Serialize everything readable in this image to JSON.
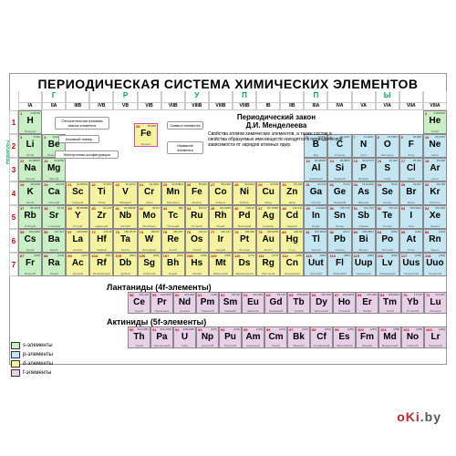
{
  "title": "ПЕРИОДИЧЕСКАЯ СИСТЕМА ХИМИЧЕСКИХ ЭЛЕМЕНТОВ",
  "groups_word": "Г   Р   У   П   П   Ы",
  "periods_word": "ПЕРИОДЫ",
  "col_labels": [
    "IA",
    "IIA",
    "IIIB",
    "IVB",
    "VB",
    "VIB",
    "VIIB",
    "VIIIB",
    "VIIIB",
    "VIIIB",
    "IB",
    "IIB",
    "IIIA",
    "IVA",
    "VA",
    "VIA",
    "VIIA",
    "VIIIA"
  ],
  "periods": [
    "1",
    "2",
    "3",
    "4",
    "5",
    "6",
    "7"
  ],
  "law": {
    "title": "Периодический закон",
    "author": "Д.И. Менделеева",
    "text": "Свойства атомов химических элементов, а также состав и свойства образуемых ими веществ находятся в периодической зависимости от зарядов атомных ядер."
  },
  "insets": {
    "b1": "Относительная атомная масса элемента",
    "b2": "Атомный номер",
    "b3": "Символ элемента",
    "b4": "Электронная конфигурация",
    "b5": "Название элемента"
  },
  "sample": {
    "num": "26",
    "mass": "55,845",
    "sym": "Fe",
    "name": "Железо"
  },
  "colors": {
    "s": "#c8f0c4",
    "p": "#c4e6f2",
    "d": "#f5f3a0",
    "f": "#e8d0e8",
    "border": "#888",
    "highlight": "#d633aa"
  },
  "legend": [
    {
      "color": "#c8f0c4",
      "label": "s-элементы"
    },
    {
      "color": "#c4e6f2",
      "label": "p-элементы"
    },
    {
      "color": "#f5f3a0",
      "label": "d-элементы"
    },
    {
      "color": "#e8d0e8",
      "label": "f-элементы"
    }
  ],
  "lanthanide_title": "Лантаниды (4f-элементы)",
  "actinide_title": "Актиниды (5f-элементы)",
  "watermark": {
    "a": "oKi",
    "b": ".by"
  },
  "elements": [
    {
      "p": 1,
      "g": 1,
      "n": 1,
      "s": "H",
      "m": "1,00794",
      "nm": "Водород",
      "c": "s"
    },
    {
      "p": 1,
      "g": 18,
      "n": 2,
      "s": "He",
      "m": "4,002602",
      "nm": "Гелий",
      "c": "s"
    },
    {
      "p": 2,
      "g": 1,
      "n": 3,
      "s": "Li",
      "m": "6,941",
      "nm": "Литий",
      "c": "s"
    },
    {
      "p": 2,
      "g": 2,
      "n": 4,
      "s": "Be",
      "m": "9,012182",
      "nm": "Бериллий",
      "c": "s"
    },
    {
      "p": 2,
      "g": 13,
      "n": 5,
      "s": "B",
      "m": "10,811",
      "nm": "Бор",
      "c": "p"
    },
    {
      "p": 2,
      "g": 14,
      "n": 6,
      "s": "C",
      "m": "12,0107",
      "nm": "Углерод",
      "c": "p"
    },
    {
      "p": 2,
      "g": 15,
      "n": 7,
      "s": "N",
      "m": "14,0067",
      "nm": "Азот",
      "c": "p"
    },
    {
      "p": 2,
      "g": 16,
      "n": 8,
      "s": "O",
      "m": "15,9994",
      "nm": "Кислород",
      "c": "p"
    },
    {
      "p": 2,
      "g": 17,
      "n": 9,
      "s": "F",
      "m": "18,998",
      "nm": "Фтор",
      "c": "p"
    },
    {
      "p": 2,
      "g": 18,
      "n": 10,
      "s": "Ne",
      "m": "20,1797",
      "nm": "Неон",
      "c": "p"
    },
    {
      "p": 3,
      "g": 1,
      "n": 11,
      "s": "Na",
      "m": "22,98976",
      "nm": "Натрий",
      "c": "s"
    },
    {
      "p": 3,
      "g": 2,
      "n": 12,
      "s": "Mg",
      "m": "24,3050",
      "nm": "Магний",
      "c": "s"
    },
    {
      "p": 3,
      "g": 13,
      "n": 13,
      "s": "Al",
      "m": "26,98153",
      "nm": "Алюминий",
      "c": "p"
    },
    {
      "p": 3,
      "g": 14,
      "n": 14,
      "s": "Si",
      "m": "28,0855",
      "nm": "Кремний",
      "c": "p"
    },
    {
      "p": 3,
      "g": 15,
      "n": 15,
      "s": "P",
      "m": "30,97376",
      "nm": "Фосфор",
      "c": "p"
    },
    {
      "p": 3,
      "g": 16,
      "n": 16,
      "s": "S",
      "m": "32,065",
      "nm": "Сера",
      "c": "p"
    },
    {
      "p": 3,
      "g": 17,
      "n": 17,
      "s": "Cl",
      "m": "35,453",
      "nm": "Хлор",
      "c": "p"
    },
    {
      "p": 3,
      "g": 18,
      "n": 18,
      "s": "Ar",
      "m": "39,948",
      "nm": "Аргон",
      "c": "p"
    },
    {
      "p": 4,
      "g": 1,
      "n": 19,
      "s": "K",
      "m": "39,0983",
      "nm": "Калий",
      "c": "s"
    },
    {
      "p": 4,
      "g": 2,
      "n": 20,
      "s": "Ca",
      "m": "40,078",
      "nm": "Кальций",
      "c": "s"
    },
    {
      "p": 4,
      "g": 3,
      "n": 21,
      "s": "Sc",
      "m": "44,95591",
      "nm": "Скандий",
      "c": "d"
    },
    {
      "p": 4,
      "g": 4,
      "n": 22,
      "s": "Ti",
      "m": "47,867",
      "nm": "Титан",
      "c": "d"
    },
    {
      "p": 4,
      "g": 5,
      "n": 23,
      "s": "V",
      "m": "50,9415",
      "nm": "Ванадий",
      "c": "d"
    },
    {
      "p": 4,
      "g": 6,
      "n": 24,
      "s": "Cr",
      "m": "51,9961",
      "nm": "Хром",
      "c": "d"
    },
    {
      "p": 4,
      "g": 7,
      "n": 25,
      "s": "Mn",
      "m": "54,93804",
      "nm": "Марганец",
      "c": "d"
    },
    {
      "p": 4,
      "g": 8,
      "n": 26,
      "s": "Fe",
      "m": "55,845",
      "nm": "Железо",
      "c": "d"
    },
    {
      "p": 4,
      "g": 9,
      "n": 27,
      "s": "Co",
      "m": "58,9332",
      "nm": "Кобальт",
      "c": "d"
    },
    {
      "p": 4,
      "g": 10,
      "n": 28,
      "s": "Ni",
      "m": "58,6934",
      "nm": "Никель",
      "c": "d"
    },
    {
      "p": 4,
      "g": 11,
      "n": 29,
      "s": "Cu",
      "m": "63,546",
      "nm": "Медь",
      "c": "d"
    },
    {
      "p": 4,
      "g": 12,
      "n": 30,
      "s": "Zn",
      "m": "65,409",
      "nm": "Цинк",
      "c": "d"
    },
    {
      "p": 4,
      "g": 13,
      "n": 31,
      "s": "Ga",
      "m": "69,723",
      "nm": "Галлий",
      "c": "p"
    },
    {
      "p": 4,
      "g": 14,
      "n": 32,
      "s": "Ge",
      "m": "72,64",
      "nm": "Германий",
      "c": "p"
    },
    {
      "p": 4,
      "g": 15,
      "n": 33,
      "s": "As",
      "m": "74,92160",
      "nm": "Мышьяк",
      "c": "p"
    },
    {
      "p": 4,
      "g": 16,
      "n": 34,
      "s": "Se",
      "m": "78,96",
      "nm": "Селен",
      "c": "p"
    },
    {
      "p": 4,
      "g": 17,
      "n": 35,
      "s": "Br",
      "m": "79,904",
      "nm": "Бром",
      "c": "p"
    },
    {
      "p": 4,
      "g": 18,
      "n": 36,
      "s": "Kr",
      "m": "83,798",
      "nm": "Криптон",
      "c": "p"
    },
    {
      "p": 5,
      "g": 1,
      "n": 37,
      "s": "Rb",
      "m": "85,4678",
      "nm": "Рубидий",
      "c": "s"
    },
    {
      "p": 5,
      "g": 2,
      "n": 38,
      "s": "Sr",
      "m": "87,62",
      "nm": "Стронций",
      "c": "s"
    },
    {
      "p": 5,
      "g": 3,
      "n": 39,
      "s": "Y",
      "m": "88,90585",
      "nm": "Иттрий",
      "c": "d"
    },
    {
      "p": 5,
      "g": 4,
      "n": 40,
      "s": "Zr",
      "m": "91,224",
      "nm": "Цирконий",
      "c": "d"
    },
    {
      "p": 5,
      "g": 5,
      "n": 41,
      "s": "Nb",
      "m": "92,90638",
      "nm": "Ниобий",
      "c": "d"
    },
    {
      "p": 5,
      "g": 6,
      "n": 42,
      "s": "Mo",
      "m": "95,94",
      "nm": "Молибден",
      "c": "d"
    },
    {
      "p": 5,
      "g": 7,
      "n": 43,
      "s": "Tc",
      "m": "[98]",
      "nm": "Технеций",
      "c": "d"
    },
    {
      "p": 5,
      "g": 8,
      "n": 44,
      "s": "Ru",
      "m": "101,07",
      "nm": "Рутений",
      "c": "d"
    },
    {
      "p": 5,
      "g": 9,
      "n": 45,
      "s": "Rh",
      "m": "102,9055",
      "nm": "Родий",
      "c": "d"
    },
    {
      "p": 5,
      "g": 10,
      "n": 46,
      "s": "Pd",
      "m": "106,42",
      "nm": "Палладий",
      "c": "d"
    },
    {
      "p": 5,
      "g": 11,
      "n": 47,
      "s": "Ag",
      "m": "107,8682",
      "nm": "Серебро",
      "c": "d"
    },
    {
      "p": 5,
      "g": 12,
      "n": 48,
      "s": "Cd",
      "m": "112,411",
      "nm": "Кадмий",
      "c": "d"
    },
    {
      "p": 5,
      "g": 13,
      "n": 49,
      "s": "In",
      "m": "114,818",
      "nm": "Индий",
      "c": "p"
    },
    {
      "p": 5,
      "g": 14,
      "n": 50,
      "s": "Sn",
      "m": "118,710",
      "nm": "Олово",
      "c": "p"
    },
    {
      "p": 5,
      "g": 15,
      "n": 51,
      "s": "Sb",
      "m": "121,760",
      "nm": "Сурьма",
      "c": "p"
    },
    {
      "p": 5,
      "g": 16,
      "n": 52,
      "s": "Te",
      "m": "127,60",
      "nm": "Теллур",
      "c": "p"
    },
    {
      "p": 5,
      "g": 17,
      "n": 53,
      "s": "I",
      "m": "126,9044",
      "nm": "Иод",
      "c": "p"
    },
    {
      "p": 5,
      "g": 18,
      "n": 54,
      "s": "Xe",
      "m": "131,293",
      "nm": "Ксенон",
      "c": "p"
    },
    {
      "p": 6,
      "g": 1,
      "n": 55,
      "s": "Cs",
      "m": "132,9054",
      "nm": "Цезий",
      "c": "s"
    },
    {
      "p": 6,
      "g": 2,
      "n": 56,
      "s": "Ba",
      "m": "137,327",
      "nm": "Барий",
      "c": "s"
    },
    {
      "p": 6,
      "g": 3,
      "n": 57,
      "s": "La",
      "m": "138,9054",
      "nm": "Лантан",
      "c": "d"
    },
    {
      "p": 6,
      "g": 4,
      "n": 72,
      "s": "Hf",
      "m": "178,49",
      "nm": "Гафний",
      "c": "d"
    },
    {
      "p": 6,
      "g": 5,
      "n": 73,
      "s": "Ta",
      "m": "180,9478",
      "nm": "Тантал",
      "c": "d"
    },
    {
      "p": 6,
      "g": 6,
      "n": 74,
      "s": "W",
      "m": "183,84",
      "nm": "Вольфрам",
      "c": "d"
    },
    {
      "p": 6,
      "g": 7,
      "n": 75,
      "s": "Re",
      "m": "186,207",
      "nm": "Рений",
      "c": "d"
    },
    {
      "p": 6,
      "g": 8,
      "n": 76,
      "s": "Os",
      "m": "190,23",
      "nm": "Осмий",
      "c": "d"
    },
    {
      "p": 6,
      "g": 9,
      "n": 77,
      "s": "Ir",
      "m": "192,217",
      "nm": "Иридий",
      "c": "d"
    },
    {
      "p": 6,
      "g": 10,
      "n": 78,
      "s": "Pt",
      "m": "195,084",
      "nm": "Платина",
      "c": "d"
    },
    {
      "p": 6,
      "g": 11,
      "n": 79,
      "s": "Au",
      "m": "196,9665",
      "nm": "Золото",
      "c": "d"
    },
    {
      "p": 6,
      "g": 12,
      "n": 80,
      "s": "Hg",
      "m": "200,59",
      "nm": "Ртуть",
      "c": "d"
    },
    {
      "p": 6,
      "g": 13,
      "n": 81,
      "s": "Tl",
      "m": "204,3833",
      "nm": "Таллий",
      "c": "p"
    },
    {
      "p": 6,
      "g": 14,
      "n": 82,
      "s": "Pb",
      "m": "207,2",
      "nm": "Свинец",
      "c": "p"
    },
    {
      "p": 6,
      "g": 15,
      "n": 83,
      "s": "Bi",
      "m": "208,9804",
      "nm": "Висмут",
      "c": "p"
    },
    {
      "p": 6,
      "g": 16,
      "n": 84,
      "s": "Po",
      "m": "[209]",
      "nm": "Полоний",
      "c": "p"
    },
    {
      "p": 6,
      "g": 17,
      "n": 85,
      "s": "At",
      "m": "[210]",
      "nm": "Астат",
      "c": "p"
    },
    {
      "p": 6,
      "g": 18,
      "n": 86,
      "s": "Rn",
      "m": "[222]",
      "nm": "Радон",
      "c": "p"
    },
    {
      "p": 7,
      "g": 1,
      "n": 87,
      "s": "Fr",
      "m": "[223]",
      "nm": "Франций",
      "c": "s"
    },
    {
      "p": 7,
      "g": 2,
      "n": 88,
      "s": "Ra",
      "m": "[226]",
      "nm": "Радий",
      "c": "s"
    },
    {
      "p": 7,
      "g": 3,
      "n": 89,
      "s": "Ac",
      "m": "[227]",
      "nm": "Актиний",
      "c": "d"
    },
    {
      "p": 7,
      "g": 4,
      "n": 104,
      "s": "Rf",
      "m": "[261]",
      "nm": "Резерфордий",
      "c": "d"
    },
    {
      "p": 7,
      "g": 5,
      "n": 105,
      "s": "Db",
      "m": "[262]",
      "nm": "Дубний",
      "c": "d"
    },
    {
      "p": 7,
      "g": 6,
      "n": 106,
      "s": "Sg",
      "m": "[266]",
      "nm": "Сиборгий",
      "c": "d"
    },
    {
      "p": 7,
      "g": 7,
      "n": 107,
      "s": "Bh",
      "m": "[264]",
      "nm": "Борий",
      "c": "d"
    },
    {
      "p": 7,
      "g": 8,
      "n": 108,
      "s": "Hs",
      "m": "[269]",
      "nm": "Хассий",
      "c": "d"
    },
    {
      "p": 7,
      "g": 9,
      "n": 109,
      "s": "Mt",
      "m": "[268]",
      "nm": "Мейтнерий",
      "c": "d"
    },
    {
      "p": 7,
      "g": 10,
      "n": 110,
      "s": "Ds",
      "m": "[271]",
      "nm": "Дармштадтий",
      "c": "d"
    },
    {
      "p": 7,
      "g": 11,
      "n": 111,
      "s": "Rg",
      "m": "[272]",
      "nm": "Рентгений",
      "c": "d"
    },
    {
      "p": 7,
      "g": 12,
      "n": 112,
      "s": "Cn",
      "m": "[285]",
      "nm": "Коперниций",
      "c": "d"
    },
    {
      "p": 7,
      "g": 13,
      "n": 113,
      "s": "Uut",
      "m": "[284]",
      "nm": "Унунтрий",
      "c": "p"
    },
    {
      "p": 7,
      "g": 14,
      "n": 114,
      "s": "Fl",
      "m": "[289]",
      "nm": "Флеровий",
      "c": "p"
    },
    {
      "p": 7,
      "g": 15,
      "n": 115,
      "s": "Uup",
      "m": "[288]",
      "nm": "Унунпентий",
      "c": "p"
    },
    {
      "p": 7,
      "g": 16,
      "n": 116,
      "s": "Lv",
      "m": "[293]",
      "nm": "Ливерморий",
      "c": "p"
    },
    {
      "p": 7,
      "g": 17,
      "n": 117,
      "s": "Uus",
      "m": "[294]",
      "nm": "Унунсептий",
      "c": "p"
    },
    {
      "p": 7,
      "g": 18,
      "n": 118,
      "s": "Uuo",
      "m": "[294]",
      "nm": "Унуноктий",
      "c": "p"
    }
  ],
  "lanthanides": [
    {
      "n": 58,
      "s": "Ce",
      "m": "140,116",
      "nm": "Церий"
    },
    {
      "n": 59,
      "s": "Pr",
      "m": "140,9076",
      "nm": "Празеодим"
    },
    {
      "n": 60,
      "s": "Nd",
      "m": "144,242",
      "nm": "Неодим"
    },
    {
      "n": 61,
      "s": "Pm",
      "m": "[145]",
      "nm": "Прометий"
    },
    {
      "n": 62,
      "s": "Sm",
      "m": "150,36",
      "nm": "Самарий"
    },
    {
      "n": 63,
      "s": "Eu",
      "m": "151,964",
      "nm": "Европий"
    },
    {
      "n": 64,
      "s": "Gd",
      "m": "157,25",
      "nm": "Гадолиний"
    },
    {
      "n": 65,
      "s": "Tb",
      "m": "158,9253",
      "nm": "Тербий"
    },
    {
      "n": 66,
      "s": "Dy",
      "m": "162,500",
      "nm": "Диспрозий"
    },
    {
      "n": 67,
      "s": "Ho",
      "m": "164,9303",
      "nm": "Гольмий"
    },
    {
      "n": 68,
      "s": "Er",
      "m": "167,259",
      "nm": "Эрбий"
    },
    {
      "n": 69,
      "s": "Tm",
      "m": "168,9342",
      "nm": "Тулий"
    },
    {
      "n": 70,
      "s": "Yb",
      "m": "173,04",
      "nm": "Иттербий"
    },
    {
      "n": 71,
      "s": "Lu",
      "m": "174,967",
      "nm": "Лютеций"
    }
  ],
  "actinides": [
    {
      "n": 90,
      "s": "Th",
      "m": "232,0381",
      "nm": "Торий"
    },
    {
      "n": 91,
      "s": "Pa",
      "m": "231,0359",
      "nm": "Протактиний"
    },
    {
      "n": 92,
      "s": "U",
      "m": "238,0289",
      "nm": "Уран"
    },
    {
      "n": 93,
      "s": "Np",
      "m": "[237]",
      "nm": "Нептуний"
    },
    {
      "n": 94,
      "s": "Pu",
      "m": "[244]",
      "nm": "Плутоний"
    },
    {
      "n": 95,
      "s": "Am",
      "m": "[243]",
      "nm": "Америций"
    },
    {
      "n": 96,
      "s": "Cm",
      "m": "[247]",
      "nm": "Кюрий"
    },
    {
      "n": 97,
      "s": "Bk",
      "m": "[247]",
      "nm": "Берклий"
    },
    {
      "n": 98,
      "s": "Cf",
      "m": "[251]",
      "nm": "Калифорний"
    },
    {
      "n": 99,
      "s": "Es",
      "m": "[252]",
      "nm": "Эйнштейний"
    },
    {
      "n": 100,
      "s": "Fm",
      "m": "[257]",
      "nm": "Фермий"
    },
    {
      "n": 101,
      "s": "Md",
      "m": "[258]",
      "nm": "Менделевий"
    },
    {
      "n": 102,
      "s": "No",
      "m": "[259]",
      "nm": "Нобелий"
    },
    {
      "n": 103,
      "s": "Lr",
      "m": "[262]",
      "nm": "Лоуренсий"
    }
  ]
}
